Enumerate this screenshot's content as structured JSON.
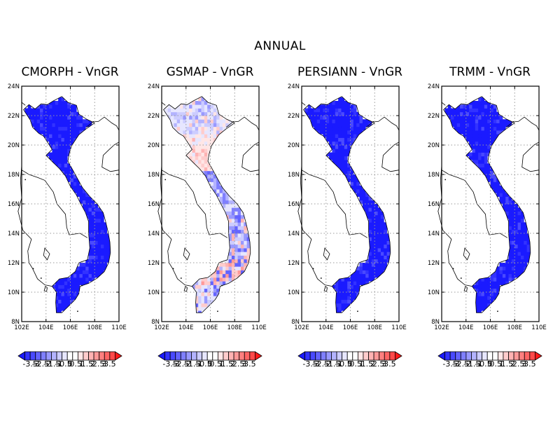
{
  "figure": {
    "suptitle": "ANNUAL"
  },
  "colors": {
    "levels": [
      "#1a1aff",
      "#3232ff",
      "#4a4aff",
      "#6464ff",
      "#7f7fff",
      "#9999ff",
      "#b3b3ff",
      "#ccccff",
      "#e6e6ff",
      "#ffffff",
      "#ffffff",
      "#ffe6e6",
      "#ffcccc",
      "#ffb3b3",
      "#ff9999",
      "#ff7f7f",
      "#ff6464",
      "#ff4a4a",
      "#ff1a1a"
    ],
    "grid": "#999999",
    "coast": "#000000"
  },
  "axes": {
    "lon_ticks": [
      "102E",
      "104E",
      "106E",
      "108E",
      "110E"
    ],
    "lat_ticks": [
      "24N",
      "22N",
      "20N",
      "18N",
      "16N",
      "14N",
      "12N",
      "10N",
      "8N"
    ]
  },
  "colorbar": {
    "labels": [
      "-3.5",
      "-3",
      "-2.5",
      "-2",
      "-1.5",
      "-1",
      "-0.5",
      "0",
      "0.5",
      "1",
      "1.5",
      "2",
      "2.5",
      "3",
      "3.5"
    ]
  },
  "chart_data": {
    "type": "heatmap",
    "variable": "VnGR",
    "extent": {
      "lon": [
        102,
        110
      ],
      "lat": [
        8,
        24
      ]
    },
    "panels": [
      {
        "title": "CMORPH - VnGR",
        "mode": "blue"
      },
      {
        "title": "GSMAP - VnGR",
        "mode": "mixed"
      },
      {
        "title": "PERSIANN - VnGR",
        "mode": "blue"
      },
      {
        "title": "TRMM - VnGR",
        "mode": "blue"
      }
    ]
  }
}
